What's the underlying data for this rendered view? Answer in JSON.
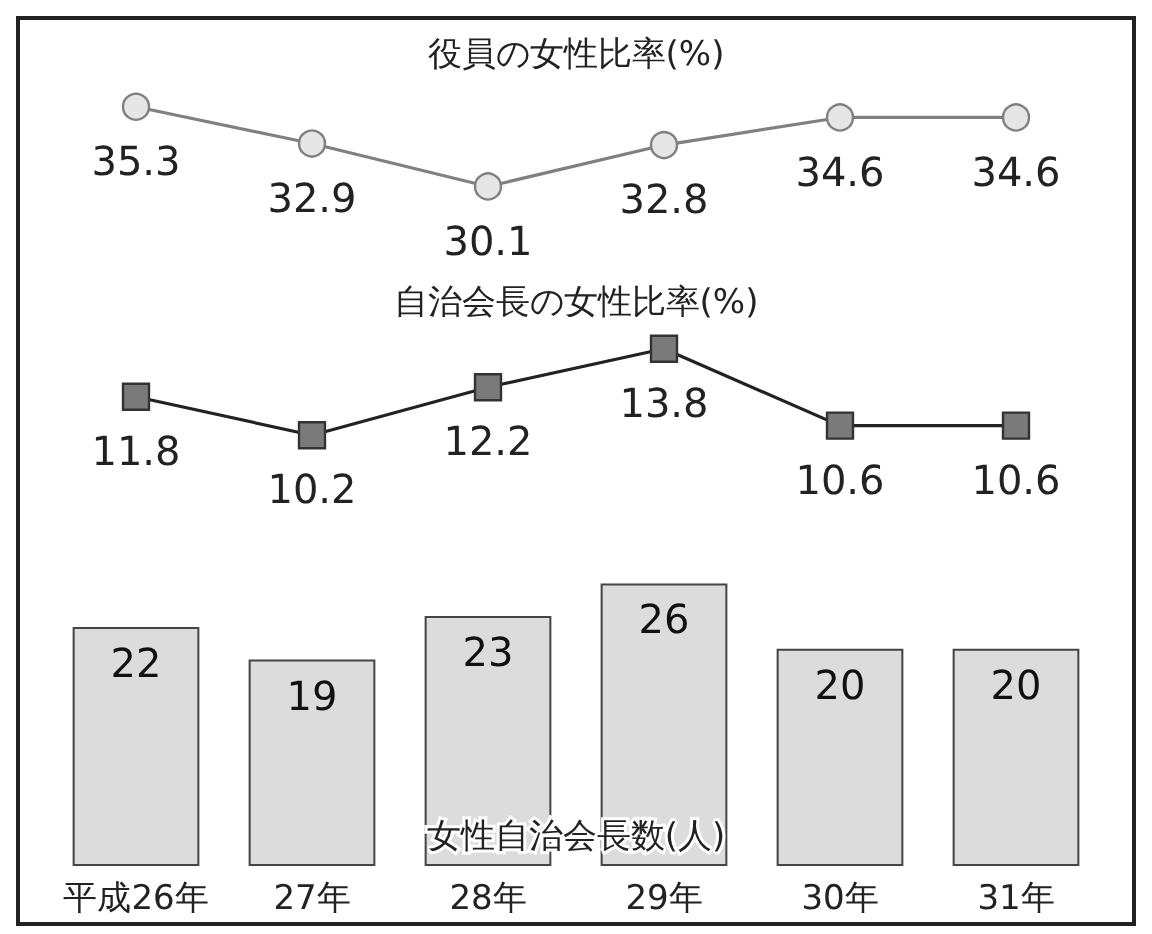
{
  "chart_data": [
    {
      "type": "line",
      "title": "役員の女性比率(%)",
      "categories": [
        null,
        null,
        null,
        null,
        null,
        null
      ],
      "values": [
        35.3,
        32.9,
        30.1,
        32.8,
        34.6,
        34.6
      ],
      "color": "#808080",
      "marker": "circle",
      "data_labels": true,
      "tick_labels": false
    },
    {
      "type": "line",
      "title": "自治会長の女性比率(%)",
      "categories": [
        null,
        null,
        null,
        null,
        null,
        null
      ],
      "values": [
        11.8,
        10.2,
        12.2,
        13.8,
        10.6,
        10.6
      ],
      "color": "#7a7a7a",
      "marker": "square",
      "data_labels": true,
      "tick_labels": false
    },
    {
      "type": "bar",
      "title": "女性自治会長数(人)",
      "categories": [
        "平成26年",
        "27年",
        "28年",
        "29年",
        "30年",
        "31年"
      ],
      "values": [
        22,
        19,
        23,
        26,
        20,
        20
      ],
      "color": "#dcdcdc",
      "data_labels": true,
      "tick_labels": "x"
    }
  ]
}
